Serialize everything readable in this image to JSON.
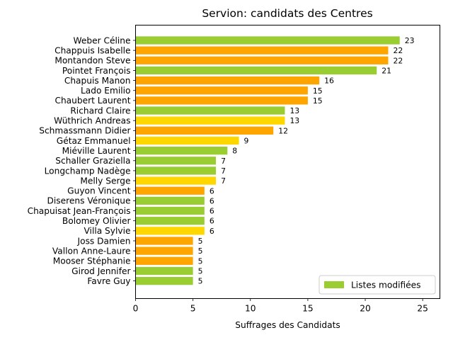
{
  "chart_data": {
    "type": "bar",
    "orientation": "horizontal",
    "title": "Servion: candidats des Centres",
    "xlabel": "Suffrages des Candidats",
    "ylabel": "",
    "xlim": [
      0,
      26.5
    ],
    "xticks": [
      0,
      5,
      10,
      15,
      20,
      25
    ],
    "grid": false,
    "legend_position": "bottom-right",
    "legend": [
      {
        "label": "Listes modifiées",
        "color": "#9ACD32"
      }
    ],
    "bars": [
      {
        "label": "Weber Céline",
        "value": 23,
        "color": "#9ACD32"
      },
      {
        "label": "Chappuis Isabelle",
        "value": 22,
        "color": "#FFA500"
      },
      {
        "label": "Montandon Steve",
        "value": 22,
        "color": "#FFA500"
      },
      {
        "label": "Pointet François",
        "value": 21,
        "color": "#9ACD32"
      },
      {
        "label": "Chapuis Manon",
        "value": 16,
        "color": "#FFA500"
      },
      {
        "label": "Lado Emilio",
        "value": 15,
        "color": "#FFA500"
      },
      {
        "label": "Chaubert Laurent",
        "value": 15,
        "color": "#FFA500"
      },
      {
        "label": "Richard Claire",
        "value": 13,
        "color": "#9ACD32"
      },
      {
        "label": "Wüthrich Andreas",
        "value": 13,
        "color": "#FFD700"
      },
      {
        "label": "Schmassmann Didier",
        "value": 12,
        "color": "#FFA500"
      },
      {
        "label": "Gétaz Emmanuel",
        "value": 9,
        "color": "#FFD700"
      },
      {
        "label": "Miéville Laurent",
        "value": 8,
        "color": "#9ACD32"
      },
      {
        "label": "Schaller Graziella",
        "value": 7,
        "color": "#9ACD32"
      },
      {
        "label": "Longchamp Nadège",
        "value": 7,
        "color": "#9ACD32"
      },
      {
        "label": "Melly Serge",
        "value": 7,
        "color": "#FFD700"
      },
      {
        "label": "Guyon Vincent",
        "value": 6,
        "color": "#FFA500"
      },
      {
        "label": "Diserens Véronique",
        "value": 6,
        "color": "#9ACD32"
      },
      {
        "label": "Chapuisat Jean-François",
        "value": 6,
        "color": "#9ACD32"
      },
      {
        "label": "Bolomey Olivier",
        "value": 6,
        "color": "#9ACD32"
      },
      {
        "label": "Villa Sylvie",
        "value": 6,
        "color": "#FFD700"
      },
      {
        "label": "Joss Damien",
        "value": 5,
        "color": "#FFA500"
      },
      {
        "label": "Vallon Anne-Laure",
        "value": 5,
        "color": "#FFA500"
      },
      {
        "label": "Mooser Stéphanie",
        "value": 5,
        "color": "#FFA500"
      },
      {
        "label": "Girod Jennifer",
        "value": 5,
        "color": "#9ACD32"
      },
      {
        "label": "Favre Guy",
        "value": 5,
        "color": "#9ACD32"
      }
    ]
  }
}
